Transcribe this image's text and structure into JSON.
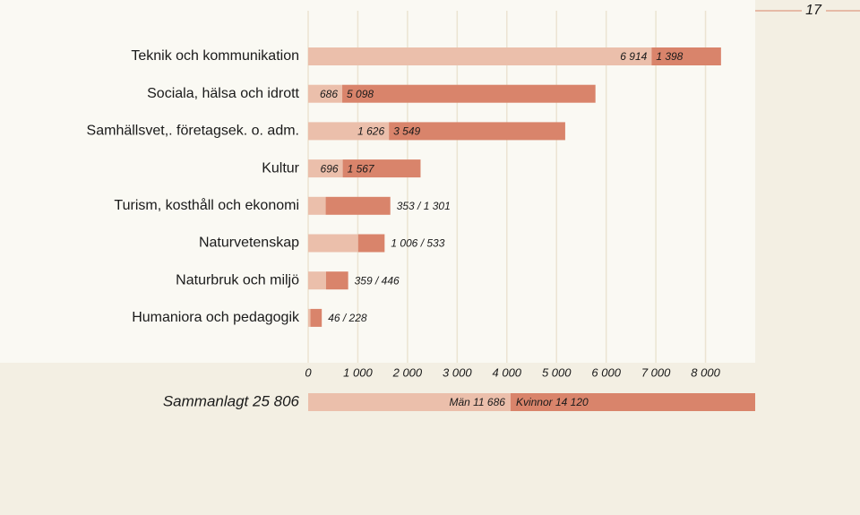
{
  "page_number": "17",
  "chart_data": {
    "type": "stacked-barh",
    "categories": [
      "Teknik och kommunikation",
      "Sociala, hälsa och idrott",
      "Samhällsvet,. företagsek. o. adm.",
      "Kultur",
      "Turism, kosthåll och ekonomi",
      "Naturvetenskap",
      "Naturbruk och miljö",
      "Humaniora och pedagogik"
    ],
    "series": [
      {
        "name": "Män",
        "color": "#ebbfab",
        "values": [
          6914,
          686,
          1626,
          696,
          353,
          1006,
          359,
          46
        ],
        "value_labels": [
          "6 914",
          "686",
          "1 626",
          "696",
          null,
          null,
          null,
          null
        ]
      },
      {
        "name": "Kvinnor",
        "color": "#d9846b",
        "values": [
          1398,
          5098,
          3549,
          1567,
          1301,
          533,
          446,
          228
        ],
        "value_labels": [
          "1 398",
          "5 098",
          "3 549",
          "1 567",
          null,
          null,
          null,
          null
        ]
      }
    ],
    "combined_labels": [
      null,
      null,
      null,
      null,
      "353 / 1 301",
      "1 006 / 533",
      "359 / 446",
      "46 / 228"
    ],
    "xlim": [
      0,
      9000
    ],
    "xticks": [
      0,
      {
        "value": 1000,
        "label": "1 000"
      },
      {
        "value": 2000,
        "label": "2 000"
      },
      {
        "value": 3000,
        "label": "3 000"
      },
      {
        "value": 4000,
        "label": "4 000"
      },
      {
        "value": 5000,
        "label": "5 000"
      },
      {
        "value": 6000,
        "label": "6 000"
      },
      {
        "value": 7000,
        "label": "7 000"
      },
      {
        "value": 8000,
        "label": "8 000"
      }
    ],
    "grid": true,
    "total": {
      "label": "Sammanlagt 25 806",
      "values": [
        11686,
        14120
      ],
      "value_labels": [
        "Män 11 686",
        "Kvinnor 14 120"
      ]
    }
  }
}
